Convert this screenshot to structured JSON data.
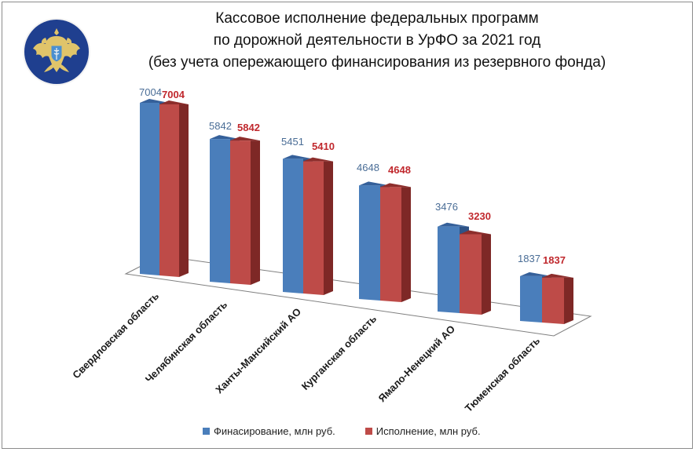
{
  "title": {
    "line1": "Кассовое исполнение федеральных программ",
    "line2": "по дорожной деятельности в УрФО за 2021 год",
    "line3": "(без учета опережающего финансирования из резервного фонда)"
  },
  "logo": {
    "icon": "emblem-double-headed-eagle-icon",
    "bg_color": "#1f3f8f",
    "emblem_color": "#e0c46a"
  },
  "colors": {
    "financing": "#4a7ebb",
    "execution": "#be4b48",
    "financing_label": "#4a6d96",
    "execution_label": "#c0282d"
  },
  "legend": {
    "financing": "Финасирование, млн руб.",
    "execution": "Исполнение, млн руб."
  },
  "chart_data": {
    "type": "bar",
    "title": "Кассовое исполнение федеральных программ по дорожной деятельности в УрФО за 2021 год (без учета опережающего финансирования из резервного фонда)",
    "categories": [
      "Свердловская область",
      "Челябинская область",
      "Ханты-Мансийский АО",
      "Курганская область",
      "Ямало-Ненецкий АО",
      "Тюменская область"
    ],
    "series": [
      {
        "name": "Финасирование, млн руб.",
        "values": [
          7004,
          5842,
          5451,
          4648,
          3476,
          1837
        ]
      },
      {
        "name": "Исполнение, млн руб.",
        "values": [
          7004,
          5842,
          5410,
          4648,
          3230,
          1837
        ]
      }
    ],
    "xlabel": "",
    "ylabel": "",
    "grid": false,
    "legend_position": "bottom",
    "style": "3d-clustered-column",
    "data_labels": true
  },
  "labels": {
    "fin": [
      "7004",
      "5842",
      "5451",
      "4648",
      "3476",
      "1837"
    ],
    "exe": [
      "7004",
      "5842",
      "5410",
      "4648",
      "3230",
      "1837"
    ]
  }
}
